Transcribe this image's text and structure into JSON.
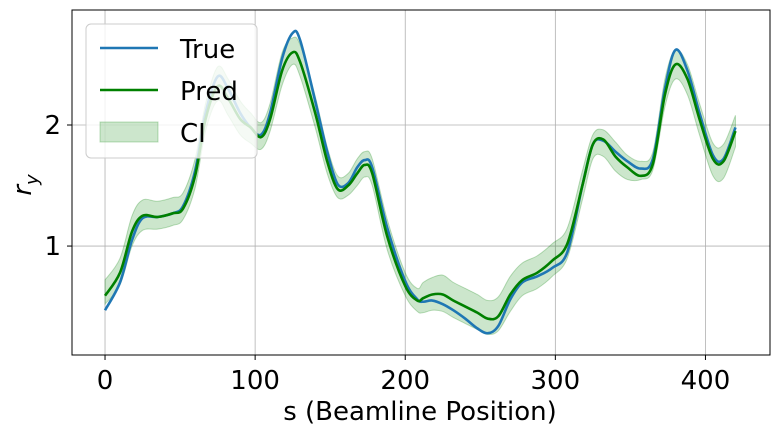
{
  "chart_data": {
    "type": "line",
    "xlabel": "s (Beamline Position)",
    "ylabel": "r_y",
    "xlim": [
      -22,
      443
    ],
    "ylim": [
      0.1,
      2.95
    ],
    "xticks": [
      0,
      100,
      200,
      300,
      400
    ],
    "yticks": [
      1,
      2
    ],
    "grid": true,
    "legend": {
      "placement": "top-left",
      "entries": [
        {
          "label": "True",
          "kind": "line",
          "color": "#1f77b4"
        },
        {
          "label": "Pred",
          "kind": "line",
          "color": "#008000"
        },
        {
          "label": "CI",
          "kind": "band",
          "color": "#008000"
        }
      ]
    },
    "x": [
      0,
      10,
      18,
      25,
      35,
      45,
      52,
      60,
      67,
      75,
      82,
      90,
      97,
      104,
      110,
      118,
      125,
      130,
      140,
      148,
      155,
      162,
      168,
      173,
      178,
      188,
      200,
      208,
      212,
      218,
      225,
      232,
      240,
      248,
      255,
      262,
      270,
      278,
      288,
      298,
      308,
      318,
      325,
      332,
      340,
      348,
      357,
      365,
      373,
      380,
      388,
      396,
      405,
      412,
      420
    ],
    "series": [
      {
        "name": "True",
        "color": "#1f77b4",
        "values": [
          0.47,
          0.7,
          1.05,
          1.23,
          1.24,
          1.27,
          1.33,
          1.62,
          2.1,
          2.4,
          2.3,
          2.1,
          1.98,
          1.92,
          2.1,
          2.55,
          2.76,
          2.7,
          2.2,
          1.78,
          1.51,
          1.52,
          1.65,
          1.71,
          1.65,
          1.15,
          0.71,
          0.56,
          0.54,
          0.55,
          0.52,
          0.47,
          0.4,
          0.32,
          0.28,
          0.34,
          0.56,
          0.7,
          0.75,
          0.82,
          0.95,
          1.5,
          1.84,
          1.87,
          1.78,
          1.7,
          1.64,
          1.72,
          2.3,
          2.62,
          2.45,
          2.1,
          1.75,
          1.72,
          1.98
        ]
      },
      {
        "name": "Pred",
        "color": "#008000",
        "values": [
          0.59,
          0.78,
          1.12,
          1.25,
          1.24,
          1.27,
          1.31,
          1.58,
          2.05,
          2.32,
          2.22,
          2.05,
          1.98,
          1.9,
          2.05,
          2.45,
          2.6,
          2.52,
          2.1,
          1.7,
          1.47,
          1.5,
          1.6,
          1.67,
          1.6,
          1.08,
          0.67,
          0.55,
          0.57,
          0.6,
          0.6,
          0.55,
          0.5,
          0.45,
          0.4,
          0.42,
          0.6,
          0.72,
          0.78,
          0.88,
          1.02,
          1.5,
          1.84,
          1.88,
          1.74,
          1.65,
          1.58,
          1.68,
          2.25,
          2.5,
          2.38,
          2.05,
          1.72,
          1.7,
          1.95
        ]
      }
    ],
    "ci": {
      "name": "CI",
      "color": "#008000",
      "lower": [
        0.52,
        0.68,
        1.0,
        1.13,
        1.14,
        1.17,
        1.22,
        1.48,
        1.95,
        2.2,
        2.08,
        1.92,
        1.85,
        1.8,
        1.95,
        2.33,
        2.5,
        2.4,
        1.98,
        1.6,
        1.4,
        1.42,
        1.5,
        1.57,
        1.5,
        0.97,
        0.59,
        0.46,
        0.45,
        0.47,
        0.46,
        0.41,
        0.36,
        0.31,
        0.27,
        0.3,
        0.46,
        0.59,
        0.65,
        0.75,
        0.9,
        1.38,
        1.72,
        1.74,
        1.62,
        1.55,
        1.55,
        1.63,
        2.15,
        2.38,
        2.25,
        1.92,
        1.58,
        1.56,
        1.82
      ],
      "upper": [
        0.72,
        0.9,
        1.25,
        1.38,
        1.37,
        1.4,
        1.44,
        1.72,
        2.18,
        2.48,
        2.38,
        2.2,
        2.1,
        2.02,
        2.18,
        2.6,
        2.72,
        2.66,
        2.24,
        1.82,
        1.58,
        1.6,
        1.72,
        1.78,
        1.72,
        1.22,
        0.78,
        0.65,
        0.7,
        0.74,
        0.76,
        0.7,
        0.65,
        0.6,
        0.55,
        0.58,
        0.75,
        0.86,
        0.92,
        1.02,
        1.15,
        1.62,
        1.92,
        1.96,
        1.86,
        1.75,
        1.7,
        1.78,
        2.38,
        2.62,
        2.5,
        2.18,
        1.85,
        1.84,
        2.08
      ]
    }
  }
}
